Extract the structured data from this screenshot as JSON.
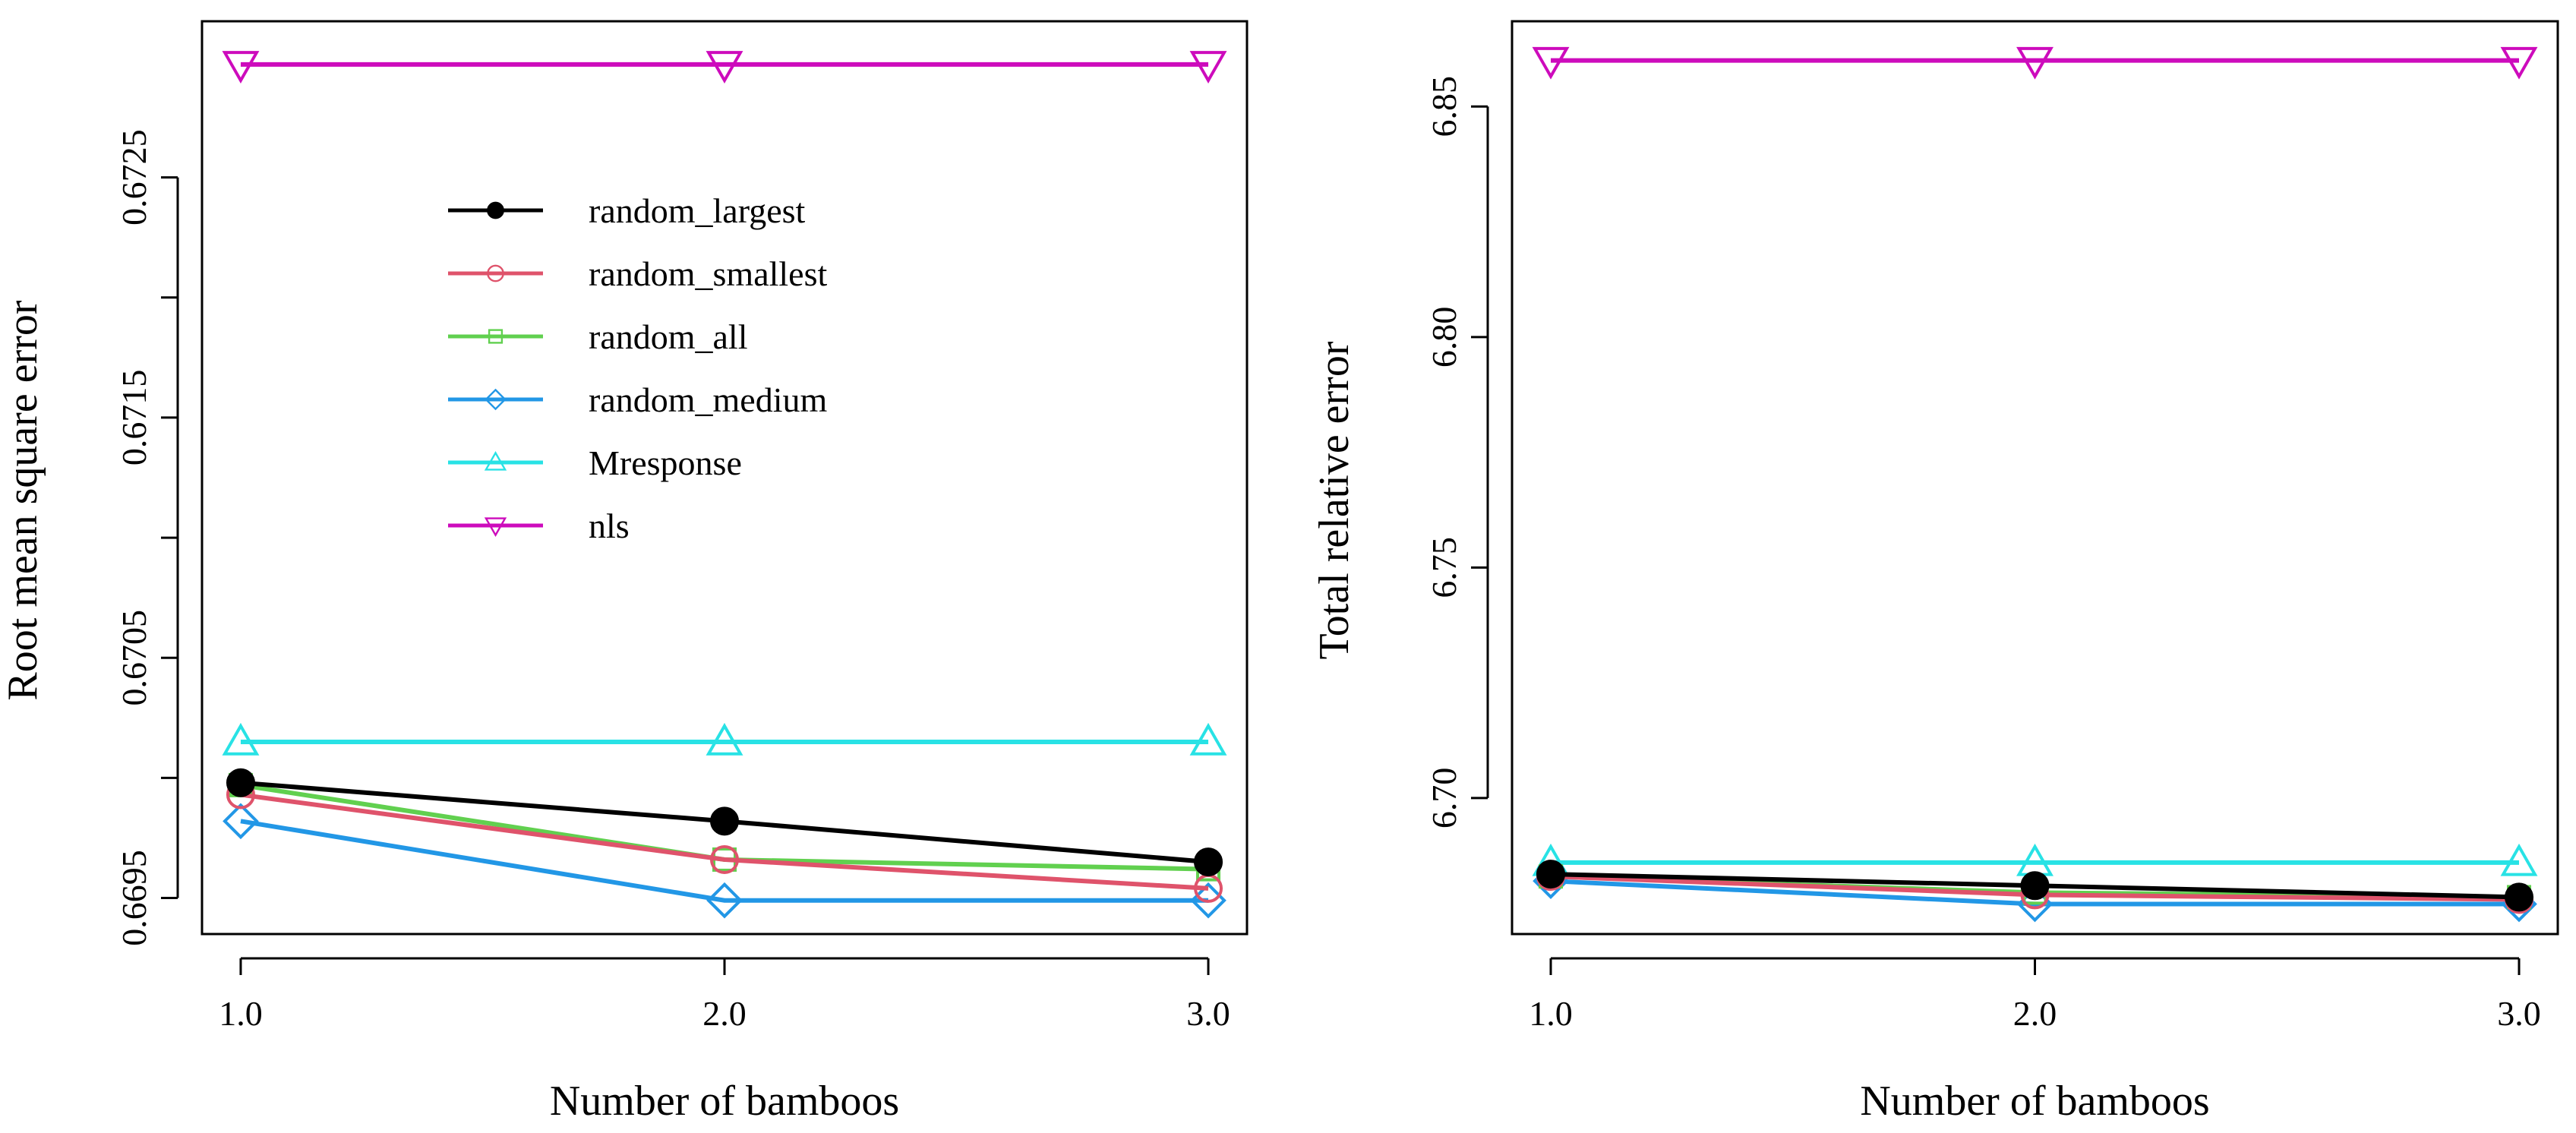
{
  "chart_data": [
    {
      "type": "line",
      "xlabel": "Number of bamboos",
      "ylabel": "Root mean square error",
      "x": [
        1,
        2,
        3
      ],
      "xticks": [
        "1.0",
        "2.0",
        "3.0"
      ],
      "xlim": [
        0.92,
        3.08
      ],
      "yticks": [
        "0.6695",
        "0.6705",
        "0.6715",
        "0.6725"
      ],
      "ylim": [
        0.66935,
        0.67315
      ],
      "legend": "top-left (inside)",
      "series": [
        {
          "name": "random_largest",
          "color": "#000000",
          "marker": "circle-filled",
          "values": [
            0.66998,
            0.66982,
            0.66965
          ]
        },
        {
          "name": "random_smallest",
          "color": "#DF536B",
          "marker": "circle-open",
          "values": [
            0.66993,
            0.66966,
            0.66954
          ]
        },
        {
          "name": "random_all",
          "color": "#61D04F",
          "marker": "square-open",
          "values": [
            0.66997,
            0.66966,
            0.66962
          ]
        },
        {
          "name": "random_medium",
          "color": "#2297E6",
          "marker": "diamond-open",
          "values": [
            0.66982,
            0.66949,
            0.66949
          ]
        },
        {
          "name": "Mresponse",
          "color": "#28E2E5",
          "marker": "triangle-up-open",
          "values": [
            0.67015,
            0.67015,
            0.67015
          ]
        },
        {
          "name": "nls",
          "color": "#CD0BBC",
          "marker": "triangle-down-open",
          "values": [
            0.67297,
            0.67297,
            0.67297
          ]
        }
      ]
    },
    {
      "type": "line",
      "xlabel": "Number of bamboos",
      "ylabel": "Total relative error",
      "x": [
        1,
        2,
        3
      ],
      "xticks": [
        "1.0",
        "2.0",
        "3.0"
      ],
      "xlim": [
        0.92,
        3.08
      ],
      "yticks": [
        "6.70",
        "6.75",
        "6.80",
        "6.85"
      ],
      "ylim": [
        6.6705,
        6.8685
      ],
      "series": [
        {
          "name": "random_largest",
          "color": "#000000",
          "marker": "circle-filled",
          "values": [
            6.6835,
            6.681,
            6.6785
          ]
        },
        {
          "name": "random_smallest",
          "color": "#DF536B",
          "marker": "circle-open",
          "values": [
            6.683,
            6.679,
            6.678
          ]
        },
        {
          "name": "random_all",
          "color": "#61D04F",
          "marker": "square-open",
          "values": [
            6.683,
            6.6795,
            6.6785
          ]
        },
        {
          "name": "random_medium",
          "color": "#2297E6",
          "marker": "diamond-open",
          "values": [
            6.682,
            6.677,
            6.677
          ]
        },
        {
          "name": "Mresponse",
          "color": "#28E2E5",
          "marker": "triangle-up-open",
          "values": [
            6.686,
            6.686,
            6.686
          ]
        },
        {
          "name": "nls",
          "color": "#CD0BBC",
          "marker": "triangle-down-open",
          "values": [
            6.86,
            6.86,
            6.86
          ]
        }
      ]
    }
  ]
}
